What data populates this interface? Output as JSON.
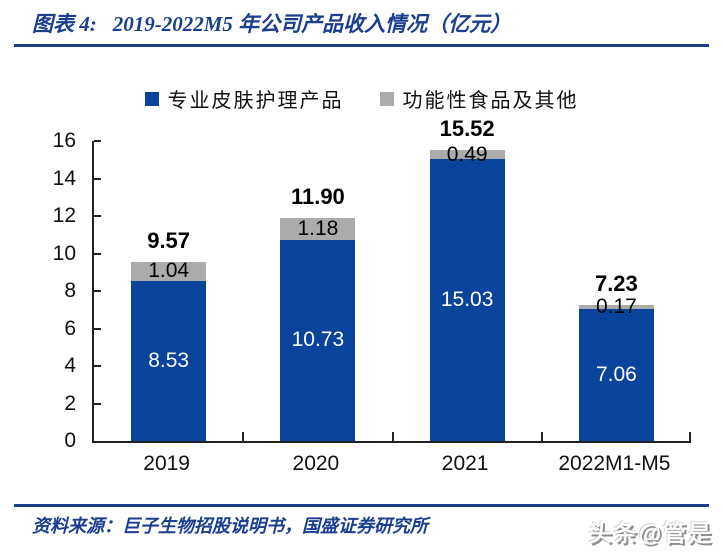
{
  "header": {
    "figure_label": "图表 4:",
    "title": "2019-2022M5 年公司产品收入情况（亿元）"
  },
  "footer": {
    "source": "资料来源：巨子生物招股说明书，国盛证券研究所",
    "watermark": "头条@管是"
  },
  "colors": {
    "bar_blue": "#09439c",
    "bar_gray": "#ababab",
    "accent_navy": "#1c3e91",
    "rule_navy": "#1a4189",
    "axis_black": "#222222"
  },
  "chart_data": {
    "type": "bar",
    "stacked": true,
    "title": "2019-2022M5 年公司产品收入情况（亿元）",
    "categories": [
      "2019",
      "2020",
      "2021",
      "2022M1-M5"
    ],
    "series": [
      {
        "name": "专业皮肤护理产品",
        "color": "#09439c",
        "values": [
          8.53,
          10.73,
          15.03,
          7.06
        ],
        "labels": [
          "8.53",
          "10.73",
          "15.03",
          "7.06"
        ]
      },
      {
        "name": "功能性食品及其他",
        "color": "#ababab",
        "values": [
          1.04,
          1.18,
          0.49,
          0.17
        ],
        "labels": [
          "1.04",
          "1.18",
          "0.49",
          "0.17"
        ]
      }
    ],
    "totals": [
      9.57,
      11.9,
      15.52,
      7.23
    ],
    "total_labels": [
      "9.57",
      "11.90",
      "15.52",
      "7.23"
    ],
    "ylim": [
      0,
      16
    ],
    "ytick_step": 2,
    "yticks": [
      0,
      2,
      4,
      6,
      8,
      10,
      12,
      14,
      16
    ],
    "grid": false,
    "legend_position": "top",
    "value_unit": "亿元"
  }
}
